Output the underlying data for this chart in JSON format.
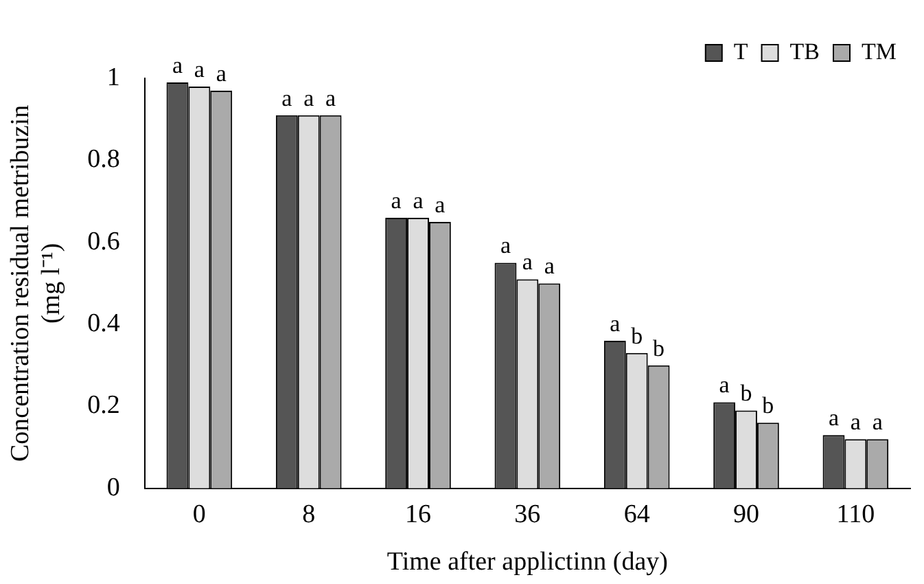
{
  "chart_data": {
    "type": "bar",
    "xlabel": "Time after applictinn (day)",
    "ylabel": "Concentration residual metribuzin (mg l⁻¹)",
    "categories": [
      "0",
      "8",
      "16",
      "36",
      "64",
      "90",
      "110"
    ],
    "series": [
      {
        "name": "T",
        "color": "#555555",
        "values": [
          0.99,
          0.91,
          0.66,
          0.55,
          0.36,
          0.21,
          0.13
        ],
        "value_labels": [
          "a",
          "a",
          "a",
          "a",
          "a",
          "a",
          "a"
        ]
      },
      {
        "name": "TB",
        "color": "#dddddd",
        "values": [
          0.98,
          0.91,
          0.66,
          0.51,
          0.33,
          0.19,
          0.12
        ],
        "value_labels": [
          "a",
          "a",
          "a",
          "a",
          "b",
          "b",
          "a"
        ]
      },
      {
        "name": "TM",
        "color": "#aaaaaa",
        "values": [
          0.97,
          0.91,
          0.65,
          0.5,
          0.3,
          0.16,
          0.12
        ],
        "value_labels": [
          "a",
          "a",
          "a",
          "a",
          "b",
          "b",
          "a"
        ]
      }
    ],
    "ylim": [
      0,
      1
    ],
    "yticks": [
      0,
      0.2,
      0.4,
      0.6,
      0.8,
      1
    ],
    "grid": false,
    "legend": "top right"
  }
}
